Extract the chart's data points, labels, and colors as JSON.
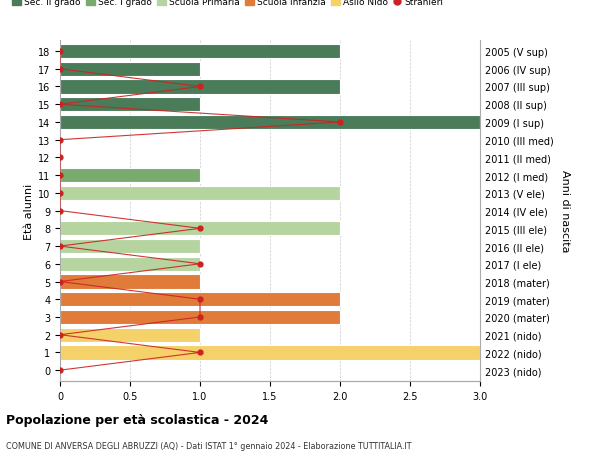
{
  "ages": [
    18,
    17,
    16,
    15,
    14,
    13,
    12,
    11,
    10,
    9,
    8,
    7,
    6,
    5,
    4,
    3,
    2,
    1,
    0
  ],
  "right_labels": [
    "2005 (V sup)",
    "2006 (IV sup)",
    "2007 (III sup)",
    "2008 (II sup)",
    "2009 (I sup)",
    "2010 (III med)",
    "2011 (II med)",
    "2012 (I med)",
    "2013 (V ele)",
    "2014 (IV ele)",
    "2015 (III ele)",
    "2016 (II ele)",
    "2017 (I ele)",
    "2018 (mater)",
    "2019 (mater)",
    "2020 (mater)",
    "2021 (nido)",
    "2022 (nido)",
    "2023 (nido)"
  ],
  "bar_values": [
    2,
    1,
    2,
    1,
    3,
    0,
    0,
    1,
    2,
    0,
    2,
    1,
    1,
    1,
    2,
    2,
    1,
    3,
    0
  ],
  "bar_colors": [
    "#4a7c59",
    "#4a7c59",
    "#4a7c59",
    "#4a7c59",
    "#4a7c59",
    "#7aab6e",
    "#7aab6e",
    "#7aab6e",
    "#b5d4a0",
    "#b5d4a0",
    "#b5d4a0",
    "#b5d4a0",
    "#b5d4a0",
    "#e07b39",
    "#e07b39",
    "#e07b39",
    "#f5d16a",
    "#f5d16a",
    "#f5d16a"
  ],
  "stranieri_values": [
    0,
    0,
    1,
    0,
    2,
    0,
    0,
    0,
    0,
    0,
    1,
    0,
    1,
    0,
    1,
    1,
    0,
    1,
    0
  ],
  "title": "Popolazione per età scolastica - 2024",
  "subtitle": "COMUNE DI ANVERSA DEGLI ABRUZZI (AQ) - Dati ISTAT 1° gennaio 2024 - Elaborazione TUTTITALIA.IT",
  "ylabel_left": "Età alunni",
  "ylabel_right": "Anni di nascita",
  "xlim": [
    0,
    3.0
  ],
  "xticks": [
    0,
    0.5,
    1.0,
    1.5,
    2.0,
    2.5,
    3.0
  ],
  "legend_items": [
    {
      "label": "Sec. II grado",
      "color": "#4a7c59",
      "type": "patch"
    },
    {
      "label": "Sec. I grado",
      "color": "#7aab6e",
      "type": "patch"
    },
    {
      "label": "Scuola Primaria",
      "color": "#b5d4a0",
      "type": "patch"
    },
    {
      "label": "Scuola Infanzia",
      "color": "#e07b39",
      "type": "patch"
    },
    {
      "label": "Asilo Nido",
      "color": "#f5d16a",
      "type": "patch"
    },
    {
      "label": "Stranieri",
      "color": "#cc2222",
      "type": "dot"
    }
  ],
  "bar_height": 0.8,
  "grid_color": "#cccccc",
  "bg_color": "#ffffff",
  "stranieri_line_color": "#cc2222",
  "stranieri_dot_color": "#cc2222"
}
